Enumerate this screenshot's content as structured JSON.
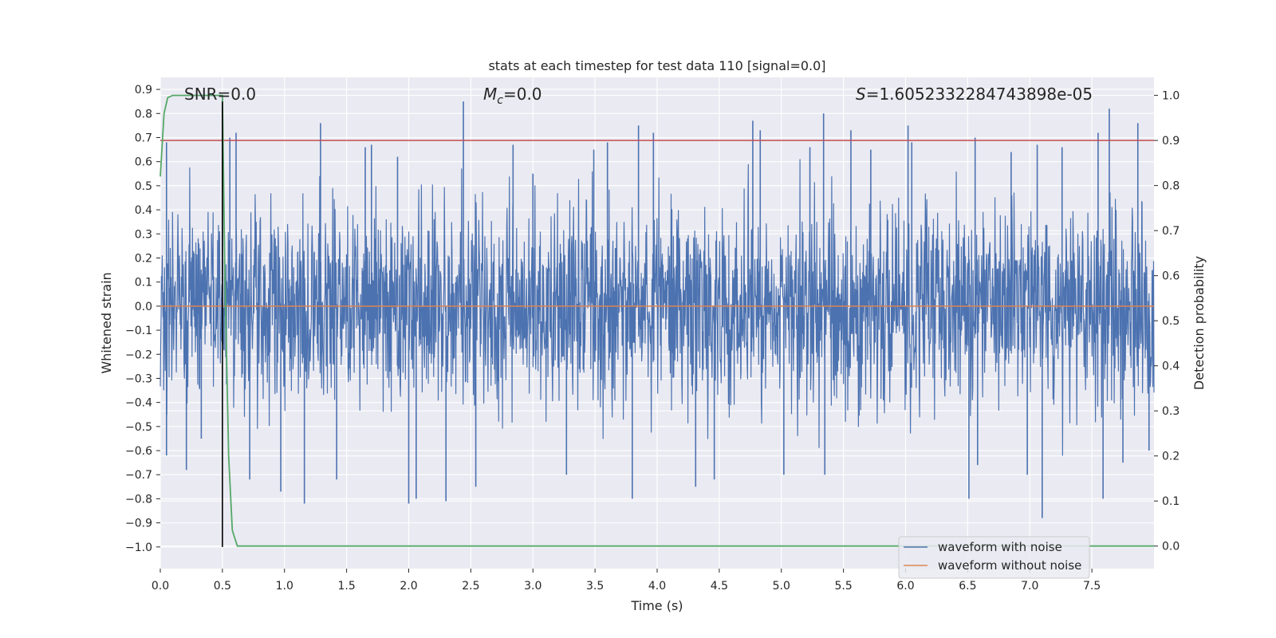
{
  "chart_data": {
    "type": "line",
    "title": "stats at each timestep for test data 110 [signal=0.0]",
    "xlabel": "Time (s)",
    "ylabel": "Whitened strain",
    "y2label": "Detection probability",
    "xlim": [
      0.0,
      8.0
    ],
    "ylim": [
      -1.09,
      0.95
    ],
    "y2lim": [
      -0.05,
      1.04
    ],
    "xticks": [
      0.0,
      0.5,
      1.0,
      1.5,
      2.0,
      2.5,
      3.0,
      3.5,
      4.0,
      4.5,
      5.0,
      5.5,
      6.0,
      6.5,
      7.0,
      7.5
    ],
    "xtick_labels": [
      "0.0",
      "0.5",
      "1.0",
      "1.5",
      "2.0",
      "2.5",
      "3.0",
      "3.5",
      "4.0",
      "4.5",
      "5.0",
      "5.5",
      "6.0",
      "6.5",
      "7.0",
      "7.5"
    ],
    "yticks": [
      0.9,
      0.8,
      0.7,
      0.6,
      0.5,
      0.4,
      0.3,
      0.2,
      0.1,
      0.0,
      -0.1,
      -0.2,
      -0.3,
      -0.4,
      -0.5,
      -0.6,
      -0.7,
      -0.8,
      -0.9,
      -1.0
    ],
    "ytick_labels": [
      "0.9",
      "0.8",
      "0.7",
      "0.6",
      "0.5",
      "0.4",
      "0.3",
      "0.2",
      "0.1",
      "0.0",
      "−0.1",
      "−0.2",
      "−0.3",
      "−0.4",
      "−0.5",
      "−0.6",
      "−0.7",
      "−0.8",
      "−0.9",
      "−1.0"
    ],
    "y2ticks": [
      1.0,
      0.9,
      0.8,
      0.7,
      0.6,
      0.5,
      0.4,
      0.3,
      0.2,
      0.1,
      0.0
    ],
    "y2tick_labels": [
      "1.0",
      "0.9",
      "0.8",
      "0.7",
      "0.6",
      "0.5",
      "0.4",
      "0.3",
      "0.2",
      "0.1",
      "0.0"
    ],
    "annotations": {
      "snr": "SNR=0.0",
      "mc_symbol": "M",
      "mc_subscript": "c",
      "mc_value": "=0.0",
      "s_symbol": "S",
      "s_value": "=1.6052332284743898e-05"
    },
    "series": [
      {
        "name": "waveform with noise",
        "axis": "left",
        "color": "#4c72b0",
        "description_range": [
          -0.88,
          0.85
        ],
        "spikes": [
          {
            "t": 0.05,
            "v": 0.68
          },
          {
            "t": 0.05,
            "v": -0.62
          },
          {
            "t": 0.21,
            "v": -0.68
          },
          {
            "t": 0.33,
            "v": -0.55
          },
          {
            "t": 0.5,
            "v": 0.85
          },
          {
            "t": 0.56,
            "v": 0.7
          },
          {
            "t": 0.61,
            "v": 0.72
          },
          {
            "t": 0.72,
            "v": -0.72
          },
          {
            "t": 0.97,
            "v": -0.77
          },
          {
            "t": 1.16,
            "v": -0.82
          },
          {
            "t": 1.29,
            "v": 0.76
          },
          {
            "t": 1.42,
            "v": -0.72
          },
          {
            "t": 1.65,
            "v": 0.66
          },
          {
            "t": 1.7,
            "v": 0.67
          },
          {
            "t": 1.91,
            "v": 0.62
          },
          {
            "t": 2.0,
            "v": -0.82
          },
          {
            "t": 2.06,
            "v": -0.8
          },
          {
            "t": 2.3,
            "v": -0.81
          },
          {
            "t": 2.44,
            "v": 0.85
          },
          {
            "t": 2.54,
            "v": -0.75
          },
          {
            "t": 2.84,
            "v": 0.67
          },
          {
            "t": 3.0,
            "v": 0.55
          },
          {
            "t": 3.27,
            "v": -0.7
          },
          {
            "t": 3.49,
            "v": 0.65
          },
          {
            "t": 3.6,
            "v": 0.68
          },
          {
            "t": 3.8,
            "v": -0.8
          },
          {
            "t": 3.85,
            "v": 0.75
          },
          {
            "t": 3.97,
            "v": 0.72
          },
          {
            "t": 4.31,
            "v": -0.75
          },
          {
            "t": 4.46,
            "v": -0.72
          },
          {
            "t": 4.77,
            "v": 0.77
          },
          {
            "t": 4.83,
            "v": 0.73
          },
          {
            "t": 5.02,
            "v": -0.7
          },
          {
            "t": 5.23,
            "v": 0.66
          },
          {
            "t": 5.34,
            "v": 0.8
          },
          {
            "t": 5.35,
            "v": -0.7
          },
          {
            "t": 5.56,
            "v": 0.73
          },
          {
            "t": 5.72,
            "v": 0.65
          },
          {
            "t": 6.02,
            "v": 0.75
          },
          {
            "t": 6.05,
            "v": 0.68
          },
          {
            "t": 6.51,
            "v": -0.8
          },
          {
            "t": 6.56,
            "v": 0.7
          },
          {
            "t": 6.58,
            "v": -0.66
          },
          {
            "t": 6.85,
            "v": 0.64
          },
          {
            "t": 6.98,
            "v": -0.7
          },
          {
            "t": 7.06,
            "v": 0.67
          },
          {
            "t": 7.1,
            "v": -0.88
          },
          {
            "t": 7.26,
            "v": 0.66
          },
          {
            "t": 7.55,
            "v": 0.72
          },
          {
            "t": 7.59,
            "v": -0.8
          },
          {
            "t": 7.64,
            "v": 0.82
          },
          {
            "t": 7.75,
            "v": -0.65
          },
          {
            "t": 7.87,
            "v": 0.76
          },
          {
            "t": 7.96,
            "v": -0.6
          }
        ]
      },
      {
        "name": "waveform without noise",
        "axis": "left",
        "color": "#dd8452",
        "x": [
          0.0,
          8.0
        ],
        "y": [
          0.0,
          0.0
        ]
      },
      {
        "name": "detection probability",
        "axis": "right",
        "color": "#55a868",
        "x": [
          0.0,
          0.03,
          0.06,
          0.1,
          0.2,
          0.3,
          0.4,
          0.5,
          0.52,
          0.55,
          0.58,
          0.62,
          1.0,
          8.0
        ],
        "y": [
          0.82,
          0.96,
          0.995,
          1.0,
          1.0,
          1.0,
          1.0,
          1.0,
          0.6,
          0.2,
          0.035,
          0.0,
          0.0,
          0.0
        ]
      }
    ],
    "threshold": {
      "axis": "right",
      "value": 0.9,
      "color": "#c44e52"
    },
    "marker_line": {
      "t": 0.5,
      "color": "#000000"
    },
    "legend": {
      "location": "lower-right",
      "entries": [
        "waveform with noise",
        "waveform without noise"
      ]
    }
  }
}
